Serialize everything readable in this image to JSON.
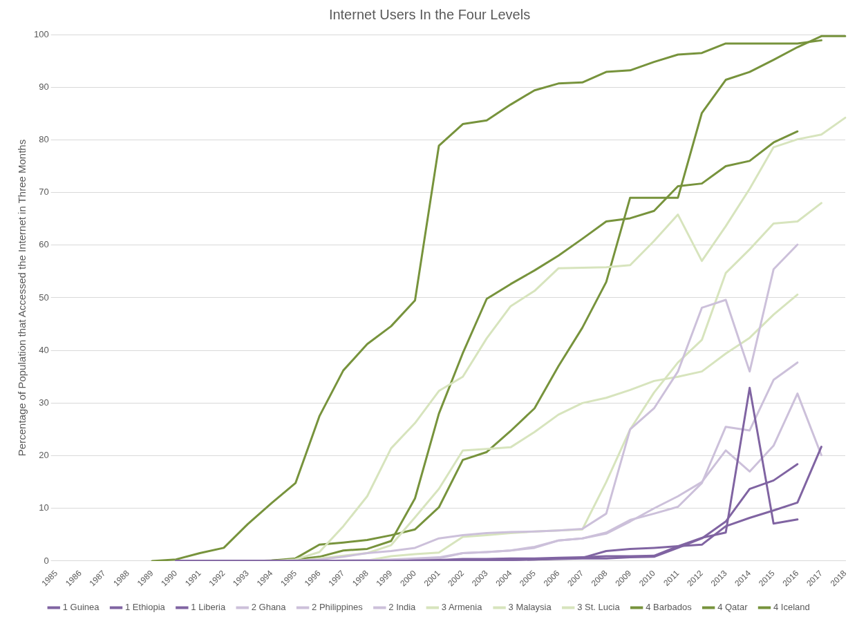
{
  "chart_data": {
    "type": "line",
    "title": "Internet Users In the Four Levels",
    "ylabel": "Percentage of Population that Accessed the Internet in Three Months",
    "categories": [
      "1985",
      "1986",
      "1987",
      "1988",
      "1989",
      "1990",
      "1991",
      "1992",
      "1993",
      "1994",
      "1995",
      "1996",
      "1997",
      "1998",
      "1999",
      "2000",
      "2001",
      "2002",
      "2003",
      "2004",
      "2005",
      "2006",
      "2007",
      "2008",
      "2009",
      "2010",
      "2011",
      "2012",
      "2013",
      "2014",
      "2015",
      "2016",
      "2017",
      "2018"
    ],
    "series": [
      {
        "name": "1 Guinea",
        "color": "#8064a2",
        "values": [
          null,
          null,
          null,
          null,
          null,
          0,
          0,
          0,
          0,
          0,
          0,
          0,
          0,
          0,
          0,
          0.1,
          0.2,
          0.4,
          0.4,
          0.5,
          0.5,
          0.6,
          0.7,
          0.9,
          0.9,
          1.0,
          2.8,
          3.1,
          6.6,
          8.2,
          9.6,
          11.1,
          21.7,
          null
        ]
      },
      {
        "name": "1 Ethiopia",
        "color": "#8064a2",
        "values": [
          null,
          null,
          null,
          null,
          null,
          0,
          0,
          0,
          0,
          0,
          0,
          0,
          0,
          0,
          0,
          0.1,
          0.1,
          0.1,
          0.2,
          0.2,
          0.3,
          0.4,
          0.5,
          0.5,
          0.7,
          0.8,
          2.5,
          4.3,
          7.5,
          13.7,
          15.3,
          18.4,
          null,
          null
        ]
      },
      {
        "name": "1 Liberia",
        "color": "#8064a2",
        "values": [
          null,
          null,
          null,
          null,
          null,
          0,
          0,
          0,
          0,
          0,
          0,
          0,
          0,
          0,
          0,
          0,
          0,
          0.1,
          0.1,
          0.2,
          0.3,
          0.5,
          0.6,
          1.9,
          2.3,
          2.5,
          2.8,
          4.4,
          5.4,
          32.9,
          7.1,
          7.9,
          null,
          null
        ]
      },
      {
        "name": "2 Ghana",
        "color": "#ccc0da",
        "values": [
          null,
          null,
          null,
          null,
          null,
          0,
          0,
          0,
          0,
          0,
          0,
          0,
          0.1,
          0.2,
          0.2,
          0.2,
          0.5,
          1.5,
          1.7,
          2.0,
          2.7,
          3.9,
          4.3,
          5.4,
          7.8,
          9.0,
          10.3,
          14.8,
          25.5,
          24.8,
          34.4,
          37.7,
          null,
          null
        ]
      },
      {
        "name": "2 Philippines",
        "color": "#ccc0da",
        "values": [
          null,
          null,
          null,
          null,
          null,
          0,
          0,
          0,
          0,
          0,
          0.1,
          0.3,
          0.8,
          1.5,
          1.9,
          2.5,
          4.3,
          4.9,
          5.3,
          5.5,
          5.6,
          5.8,
          6.1,
          9.0,
          25.0,
          29.0,
          36.0,
          48.1,
          49.6,
          36.0,
          55.4,
          60.1,
          null,
          null
        ]
      },
      {
        "name": "2 India",
        "color": "#ccc0da",
        "values": [
          null,
          null,
          null,
          null,
          null,
          0,
          0,
          0,
          0,
          0,
          0,
          0,
          0.1,
          0.1,
          0.3,
          0.5,
          0.7,
          1.5,
          1.7,
          2.0,
          2.5,
          3.9,
          4.3,
          5.2,
          7.5,
          10.0,
          12.3,
          15.0,
          21.0,
          17.0,
          21.9,
          31.8,
          20.1,
          null
        ]
      },
      {
        "name": "3 Armenia",
        "color": "#d7e4bd",
        "values": [
          null,
          null,
          null,
          null,
          null,
          0,
          0,
          0,
          0,
          0,
          0,
          0,
          0.1,
          0.1,
          0.9,
          1.3,
          1.6,
          4.6,
          4.9,
          5.3,
          5.6,
          5.8,
          6.0,
          15.0,
          25.0,
          32.0,
          37.7,
          42.0,
          54.7,
          59.2,
          64.1,
          64.5,
          68.0,
          null
        ]
      },
      {
        "name": "3 Malaysia",
        "color": "#d7e4bd",
        "values": [
          null,
          null,
          null,
          null,
          null,
          0,
          0,
          0,
          0,
          0,
          0.3,
          1.7,
          6.6,
          12.3,
          21.4,
          26.2,
          32.3,
          35.0,
          42.3,
          48.4,
          51.3,
          55.6,
          55.7,
          55.8,
          56.2,
          60.8,
          65.8,
          57.0,
          63.6,
          70.7,
          78.6,
          80.1,
          81.0,
          84.2
        ]
      },
      {
        "name": "3 St. Lucia",
        "color": "#d7e4bd",
        "values": [
          null,
          null,
          null,
          null,
          null,
          0,
          0,
          0,
          0,
          0,
          0,
          0.5,
          1.0,
          1.5,
          3.0,
          8.3,
          13.7,
          21.0,
          21.3,
          21.6,
          24.5,
          27.8,
          30.0,
          31.0,
          32.5,
          34.2,
          35.0,
          36.0,
          39.4,
          42.4,
          46.8,
          50.6,
          null,
          null
        ]
      },
      {
        "name": "4 Barbados",
        "color": "#77933c",
        "values": [
          null,
          null,
          null,
          null,
          null,
          0,
          0,
          0,
          0,
          0.1,
          0.3,
          0.8,
          2.0,
          2.3,
          3.8,
          11.9,
          28.0,
          39.5,
          49.8,
          52.6,
          55.2,
          58.0,
          61.2,
          64.5,
          65.1,
          66.5,
          71.2,
          71.7,
          75.0,
          76.0,
          79.5,
          81.6,
          null,
          null
        ]
      },
      {
        "name": "4 Qatar",
        "color": "#77933c",
        "values": [
          null,
          null,
          null,
          null,
          null,
          0,
          0,
          0,
          0,
          0.1,
          0.5,
          3.1,
          3.5,
          4.0,
          4.9,
          6.0,
          10.2,
          19.2,
          20.7,
          24.7,
          29.0,
          37.0,
          44.3,
          53.0,
          69.0,
          69.0,
          69.0,
          85.1,
          91.4,
          92.9,
          95.2,
          97.6,
          99.7,
          99.7
        ]
      },
      {
        "name": "4 Iceland",
        "color": "#77933c",
        "values": [
          null,
          null,
          null,
          null,
          0,
          0.3,
          1.5,
          2.5,
          7.0,
          11.0,
          14.8,
          27.5,
          36.2,
          41.2,
          44.6,
          49.5,
          78.9,
          83.0,
          83.7,
          86.7,
          89.4,
          90.7,
          90.9,
          92.9,
          93.2,
          94.8,
          96.2,
          96.5,
          98.3,
          98.3,
          98.3,
          98.3,
          98.9,
          null
        ]
      }
    ],
    "ylim": [
      0,
      100
    ],
    "yticks": [
      0,
      10,
      20,
      30,
      40,
      50,
      60,
      70,
      80,
      90,
      100
    ],
    "grid": "y",
    "legend": "bottom",
    "marker": "none",
    "line_style": "solid"
  }
}
